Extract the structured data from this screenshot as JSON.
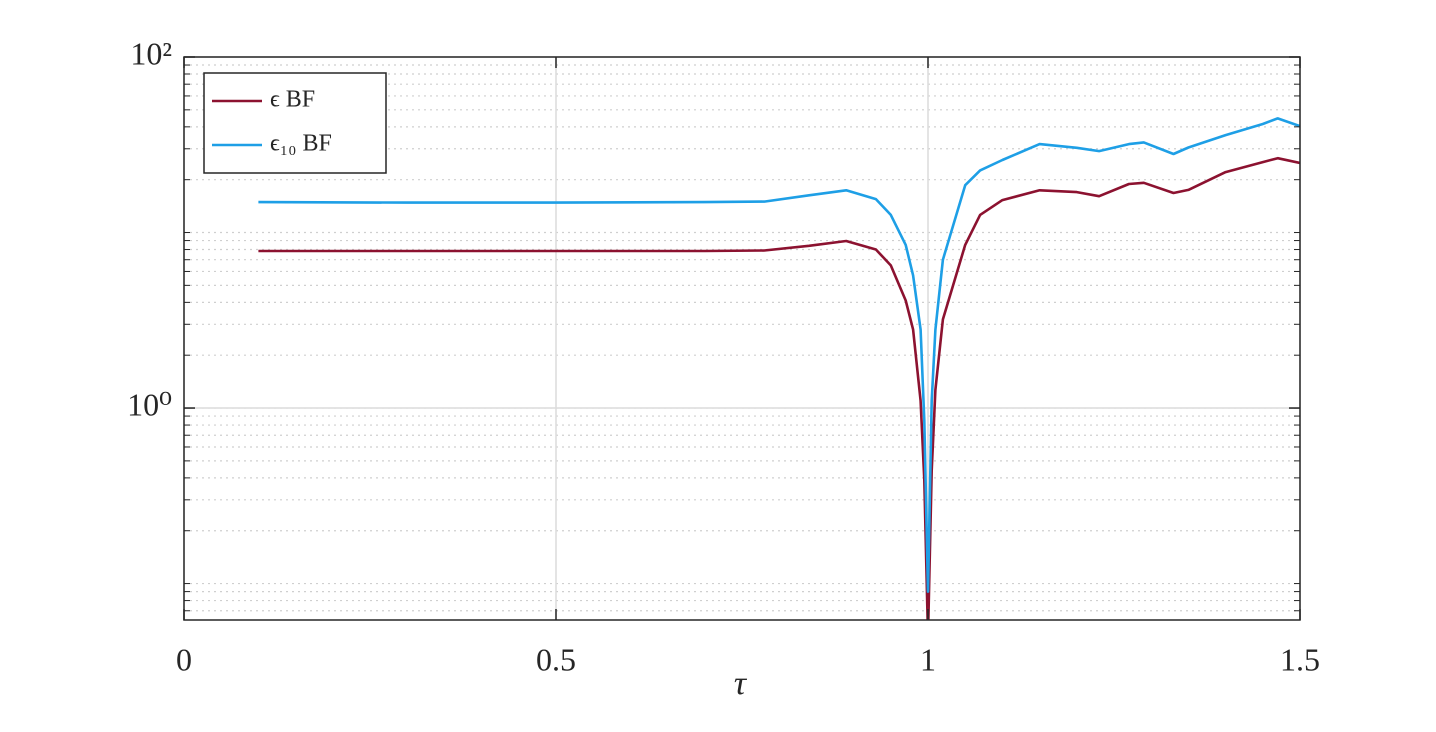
{
  "chart_data": {
    "type": "line",
    "x_label": "τ",
    "x": [
      0.1,
      0.3,
      0.5,
      0.7,
      0.78,
      0.84,
      0.89,
      0.93,
      0.95,
      0.97,
      0.98,
      0.99,
      0.995,
      1.0,
      1.005,
      1.01,
      1.02,
      1.05,
      1.07,
      1.1,
      1.15,
      1.2,
      1.23,
      1.27,
      1.29,
      1.33,
      1.35,
      1.4,
      1.45,
      1.47,
      1.5
    ],
    "series": [
      {
        "name": "ϵ BF",
        "color": "#8c1230",
        "values": [
          7.85,
          7.85,
          7.85,
          7.85,
          7.9,
          8.4,
          8.95,
          8.0,
          6.5,
          4.1,
          2.8,
          1.1,
          0.39,
          0.05,
          0.44,
          1.27,
          3.2,
          8.5,
          12.6,
          15.3,
          17.4,
          17.0,
          16.1,
          18.9,
          19.2,
          16.8,
          17.5,
          22.1,
          25.2,
          26.5,
          24.9
        ]
      },
      {
        "name": "ϵ₁₀ BF",
        "color": "#1e9fe6",
        "values": [
          14.9,
          14.8,
          14.8,
          14.9,
          15.0,
          16.3,
          17.4,
          15.5,
          12.6,
          8.5,
          5.7,
          2.8,
          0.85,
          0.09,
          1.1,
          2.8,
          7.0,
          18.6,
          22.6,
          25.9,
          31.9,
          30.4,
          29.1,
          31.9,
          32.6,
          28.0,
          30.5,
          35.9,
          41.5,
          44.7,
          40.4
        ]
      }
    ],
    "xlim": [
      0,
      1.5
    ],
    "xticks": [
      0,
      0.5,
      1,
      1.5
    ],
    "ylim": [
      0.062,
      100
    ],
    "yticks": [
      {
        "value": 1,
        "label": "10⁰"
      },
      {
        "value": 100,
        "label": "10²"
      }
    ],
    "log_y": true,
    "grid": true,
    "minor_grid": true,
    "legend": "upper left"
  }
}
